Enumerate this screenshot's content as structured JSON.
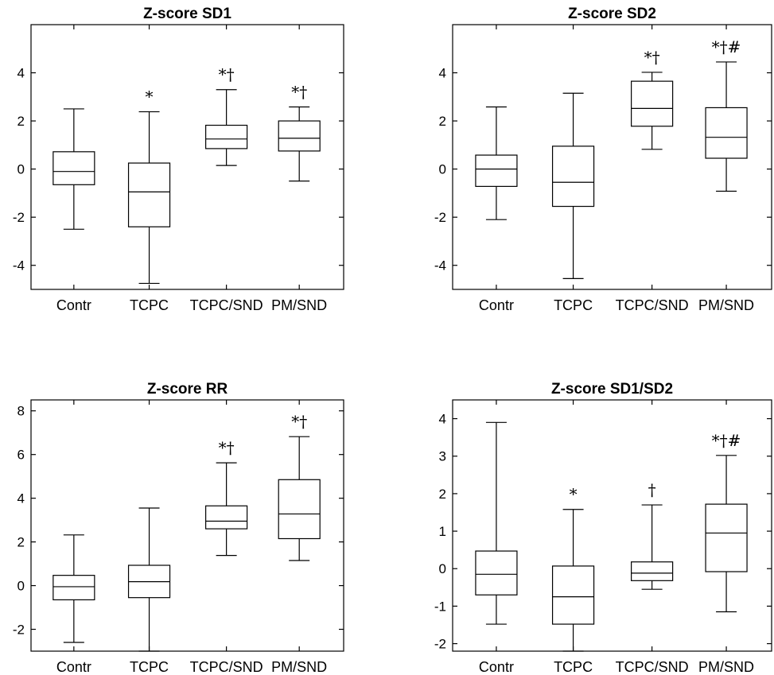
{
  "chart_data": [
    {
      "type": "box",
      "title": "Z-score SD1",
      "categories": [
        "Contr",
        "TCPC",
        "TCPC/SND",
        "PM/SND"
      ],
      "ylim": [
        -5,
        6
      ],
      "yticks": [
        "-4",
        "-2",
        "0",
        "2",
        "4"
      ],
      "boxes": [
        {
          "whisker_low": -2.5,
          "q1": -0.65,
          "median": -0.1,
          "q3": 0.72,
          "whisker_high": 2.5,
          "annotation": ""
        },
        {
          "whisker_low": -4.75,
          "q1": -2.4,
          "median": -0.95,
          "q3": 0.25,
          "whisker_high": 2.38,
          "annotation": "*"
        },
        {
          "whisker_low": 0.15,
          "q1": 0.85,
          "median": 1.25,
          "q3": 1.82,
          "whisker_high": 3.3,
          "annotation": "*†"
        },
        {
          "whisker_low": -0.5,
          "q1": 0.75,
          "median": 1.28,
          "q3": 2.0,
          "whisker_high": 2.58,
          "annotation": "*†"
        }
      ]
    },
    {
      "type": "box",
      "title": "Z-score SD2",
      "categories": [
        "Contr",
        "TCPC",
        "TCPC/SND",
        "PM/SND"
      ],
      "ylim": [
        -5,
        6
      ],
      "yticks": [
        "-4",
        "-2",
        "0",
        "2",
        "4"
      ],
      "boxes": [
        {
          "whisker_low": -2.1,
          "q1": -0.72,
          "median": 0.0,
          "q3": 0.58,
          "whisker_high": 2.58,
          "annotation": ""
        },
        {
          "whisker_low": -4.55,
          "q1": -1.55,
          "median": -0.55,
          "q3": 0.95,
          "whisker_high": 3.15,
          "annotation": ""
        },
        {
          "whisker_low": 0.82,
          "q1": 1.78,
          "median": 2.52,
          "q3": 3.65,
          "whisker_high": 4.02,
          "annotation": "*†"
        },
        {
          "whisker_low": -0.92,
          "q1": 0.45,
          "median": 1.32,
          "q3": 2.55,
          "whisker_high": 4.45,
          "annotation": "*†#"
        }
      ]
    },
    {
      "type": "box",
      "title": "Z-score RR",
      "categories": [
        "Contr",
        "TCPC",
        "TCPC/SND",
        "PM/SND"
      ],
      "ylim": [
        -3,
        8.5
      ],
      "yticks": [
        "-2",
        "0",
        "2",
        "4",
        "6",
        "8"
      ],
      "boxes": [
        {
          "whisker_low": -2.6,
          "q1": -0.65,
          "median": -0.05,
          "q3": 0.47,
          "whisker_high": 2.32,
          "annotation": ""
        },
        {
          "whisker_low": -3.0,
          "q1": -0.55,
          "median": 0.18,
          "q3": 0.93,
          "whisker_high": 3.55,
          "annotation": ""
        },
        {
          "whisker_low": 1.38,
          "q1": 2.6,
          "median": 2.95,
          "q3": 3.65,
          "whisker_high": 5.62,
          "annotation": "*†"
        },
        {
          "whisker_low": 1.15,
          "q1": 2.15,
          "median": 3.28,
          "q3": 4.85,
          "whisker_high": 6.82,
          "annotation": "*†"
        }
      ]
    },
    {
      "type": "box",
      "title": "Z-score SD1/SD2",
      "categories": [
        "Contr",
        "TCPC",
        "TCPC/SND",
        "PM/SND"
      ],
      "ylim": [
        -2.2,
        4.5
      ],
      "yticks": [
        "-2",
        "-1",
        "0",
        "1",
        "2",
        "3",
        "4"
      ],
      "boxes": [
        {
          "whisker_low": -1.48,
          "q1": -0.7,
          "median": -0.15,
          "q3": 0.47,
          "whisker_high": 3.9,
          "annotation": ""
        },
        {
          "whisker_low": -2.2,
          "q1": -1.48,
          "median": -0.75,
          "q3": 0.07,
          "whisker_high": 1.58,
          "annotation": "*"
        },
        {
          "whisker_low": -0.55,
          "q1": -0.32,
          "median": -0.12,
          "q3": 0.18,
          "whisker_high": 1.7,
          "annotation": "†"
        },
        {
          "whisker_low": -1.15,
          "q1": -0.08,
          "median": 0.95,
          "q3": 1.72,
          "whisker_high": 3.02,
          "annotation": "*†#"
        }
      ]
    }
  ]
}
